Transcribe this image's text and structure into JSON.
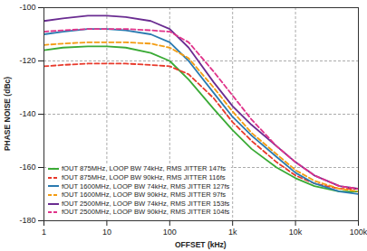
{
  "chart_data": {
    "type": "line",
    "x_label": "OFFSET (kHz)",
    "y_label": "PHASE NOISE (dBc)",
    "log": "x",
    "grid": true,
    "legend": "bottom-left",
    "xlim": [
      1,
      100000
    ],
    "ylim": [
      -180,
      -100
    ],
    "xticks": [
      1,
      10,
      100,
      {
        "value": 1000,
        "label": "1k"
      },
      {
        "value": 10000,
        "label": "10k"
      },
      {
        "value": 100000,
        "label": "100k"
      }
    ],
    "yticks": [
      -180,
      -160,
      -140,
      -120,
      -100
    ],
    "x": [
      1,
      2,
      5,
      10,
      20,
      50,
      100,
      200,
      500,
      1000,
      2000,
      5000,
      10000,
      20000,
      50000,
      100000
    ],
    "series": [
      {
        "name": "fOUT 875MHz, LOOP BW 74kHz, RMS JITTER 147fs",
        "color": "#3aaa35",
        "line_style": "solid",
        "values": [
          -116,
          -115,
          -114.5,
          -114.5,
          -115,
          -117,
          -120,
          -127,
          -138,
          -146,
          -153,
          -160,
          -164,
          -167,
          -169,
          -169
        ]
      },
      {
        "name": "fOUT 875MHz, LOOP BW 90kHz, RMS JITTER 116fs",
        "color": "#e8392b",
        "line_style": "dashed",
        "values": [
          -122,
          -121.5,
          -121,
          -121,
          -121,
          -121.5,
          -122,
          -125,
          -134,
          -143,
          -150,
          -158,
          -163,
          -166,
          -168,
          -168
        ]
      },
      {
        "name": "fOUT 1600MHz, LOOP BW 74kHz, RMS JITTER 127fs",
        "color": "#2a7ab0",
        "line_style": "solid",
        "values": [
          -110,
          -109,
          -108,
          -108,
          -108.5,
          -110,
          -113,
          -120,
          -132,
          -141,
          -148,
          -156,
          -162,
          -166,
          -169,
          -170
        ]
      },
      {
        "name": "fOUT 1600MHz, LOOP BW 90kHz, RMS JITTER 97fs",
        "color": "#f39c12",
        "line_style": "dashed",
        "values": [
          -114,
          -113.5,
          -113,
          -113,
          -113,
          -113.5,
          -115,
          -119,
          -130,
          -139,
          -147,
          -155,
          -161,
          -165,
          -168,
          -169
        ]
      },
      {
        "name": "fOUT 2500MHz, LOOP BW 74kHz, RMS JITTER 153fs",
        "color": "#6a2c91",
        "line_style": "solid",
        "values": [
          -105,
          -104,
          -103,
          -103,
          -103.5,
          -105,
          -108,
          -115,
          -128,
          -137,
          -144,
          -152,
          -158,
          -163,
          -167,
          -168
        ]
      },
      {
        "name": "fOUT 2500MHz, LOOP BW 90kHz, RMS JITTER 104fs",
        "color": "#e0338a",
        "line_style": "dashed",
        "values": [
          -109,
          -108.5,
          -108,
          -108,
          -108,
          -108.5,
          -109,
          -113,
          -124,
          -133,
          -142,
          -152,
          -158,
          -163,
          -167,
          -168
        ]
      }
    ]
  }
}
